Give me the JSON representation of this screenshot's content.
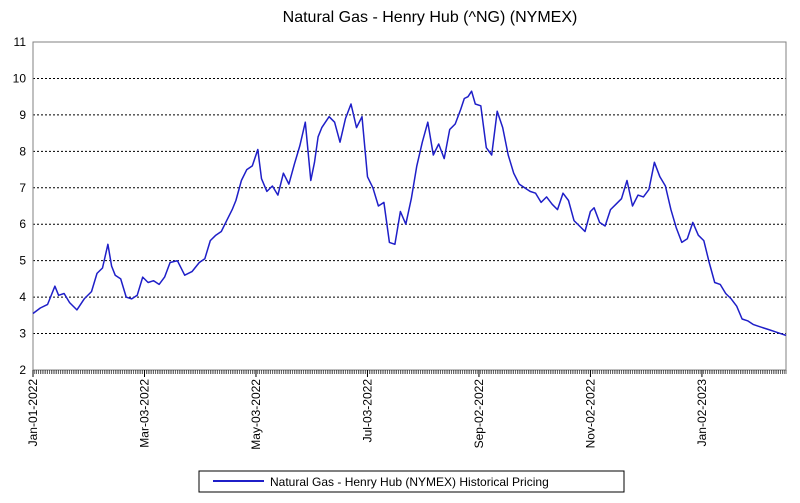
{
  "chart_data": {
    "type": "line",
    "title": "Natural Gas - Henry Hub (^NG) (NYMEX)",
    "xlabel": "",
    "ylabel": "",
    "ylim": [
      2,
      11
    ],
    "yticks": [
      2,
      3,
      4,
      5,
      6,
      7,
      8,
      9,
      10,
      11
    ],
    "xlim": [
      "2022-01-01",
      "2023-02-17"
    ],
    "xticks": [
      {
        "date": "2022-01-01",
        "label": "Jan-01-2022"
      },
      {
        "date": "2022-03-03",
        "label": "Mar-03-2022"
      },
      {
        "date": "2022-05-03",
        "label": "May-03-2022"
      },
      {
        "date": "2022-07-03",
        "label": "Jul-03-2022"
      },
      {
        "date": "2022-09-02",
        "label": "Sep-02-2022"
      },
      {
        "date": "2022-11-02",
        "label": "Nov-02-2022"
      },
      {
        "date": "2023-01-02",
        "label": "Jan-02-2023"
      }
    ],
    "grid": true,
    "legend_position": "bottom",
    "colors": {
      "series": "#1f1fc8",
      "grid": "#000000",
      "frame": "#808080"
    },
    "series": [
      {
        "name": "Natural Gas - Henry Hub (NYMEX) Historical Pricing",
        "x": [
          "2022-01-01",
          "2022-01-05",
          "2022-01-09",
          "2022-01-13",
          "2022-01-15",
          "2022-01-18",
          "2022-01-21",
          "2022-01-25",
          "2022-01-29",
          "2022-02-02",
          "2022-02-05",
          "2022-02-08",
          "2022-02-11",
          "2022-02-13",
          "2022-02-15",
          "2022-02-18",
          "2022-02-21",
          "2022-02-24",
          "2022-02-27",
          "2022-03-02",
          "2022-03-05",
          "2022-03-08",
          "2022-03-11",
          "2022-03-14",
          "2022-03-17",
          "2022-03-21",
          "2022-03-25",
          "2022-03-29",
          "2022-04-02",
          "2022-04-05",
          "2022-04-08",
          "2022-04-11",
          "2022-04-14",
          "2022-04-17",
          "2022-04-20",
          "2022-04-22",
          "2022-04-25",
          "2022-04-28",
          "2022-05-01",
          "2022-05-04",
          "2022-05-06",
          "2022-05-09",
          "2022-05-12",
          "2022-05-15",
          "2022-05-18",
          "2022-05-21",
          "2022-05-24",
          "2022-05-27",
          "2022-05-30",
          "2022-06-02",
          "2022-06-04",
          "2022-06-06",
          "2022-06-08",
          "2022-06-10",
          "2022-06-12",
          "2022-06-15",
          "2022-06-18",
          "2022-06-21",
          "2022-06-24",
          "2022-06-27",
          "2022-06-30",
          "2022-07-03",
          "2022-07-06",
          "2022-07-09",
          "2022-07-12",
          "2022-07-15",
          "2022-07-18",
          "2022-07-21",
          "2022-07-24",
          "2022-07-27",
          "2022-07-30",
          "2022-08-02",
          "2022-08-05",
          "2022-08-08",
          "2022-08-11",
          "2022-08-14",
          "2022-08-17",
          "2022-08-20",
          "2022-08-23",
          "2022-08-25",
          "2022-08-27",
          "2022-08-29",
          "2022-08-31",
          "2022-09-03",
          "2022-09-06",
          "2022-09-09",
          "2022-09-12",
          "2022-09-15",
          "2022-09-18",
          "2022-09-21",
          "2022-09-24",
          "2022-09-27",
          "2022-09-30",
          "2022-10-03",
          "2022-10-06",
          "2022-10-09",
          "2022-10-12",
          "2022-10-15",
          "2022-10-18",
          "2022-10-21",
          "2022-10-24",
          "2022-10-27",
          "2022-10-30",
          "2022-11-02",
          "2022-11-04",
          "2022-11-07",
          "2022-11-10",
          "2022-11-13",
          "2022-11-16",
          "2022-11-19",
          "2022-11-22",
          "2022-11-25",
          "2022-11-28",
          "2022-12-01",
          "2022-12-04",
          "2022-12-07",
          "2022-12-10",
          "2022-12-13",
          "2022-12-16",
          "2022-12-19",
          "2022-12-22",
          "2022-12-25",
          "2022-12-28",
          "2022-12-31",
          "2023-01-03",
          "2023-01-06",
          "2023-01-09",
          "2023-01-12",
          "2023-01-15",
          "2023-01-18",
          "2023-01-21",
          "2023-01-24",
          "2023-01-27",
          "2023-01-30",
          "2023-02-02",
          "2023-02-05",
          "2023-02-08",
          "2023-02-11",
          "2023-02-14",
          "2023-02-17"
        ],
        "values": [
          3.55,
          3.7,
          3.8,
          4.3,
          4.05,
          4.1,
          3.85,
          3.65,
          3.95,
          4.15,
          4.65,
          4.8,
          5.45,
          4.85,
          4.6,
          4.5,
          4.0,
          3.95,
          4.05,
          4.55,
          4.4,
          4.45,
          4.35,
          4.55,
          4.95,
          5.0,
          4.6,
          4.7,
          4.95,
          5.05,
          5.55,
          5.7,
          5.8,
          6.1,
          6.4,
          6.65,
          7.2,
          7.5,
          7.6,
          8.05,
          7.25,
          6.9,
          7.05,
          6.8,
          7.4,
          7.1,
          7.65,
          8.15,
          8.8,
          7.2,
          7.7,
          8.4,
          8.65,
          8.8,
          8.95,
          8.8,
          8.25,
          8.9,
          9.3,
          8.65,
          8.95,
          7.3,
          7.0,
          6.5,
          6.6,
          5.5,
          5.45,
          6.35,
          6.0,
          6.7,
          7.6,
          8.25,
          8.8,
          7.9,
          8.2,
          7.8,
          8.6,
          8.75,
          9.15,
          9.45,
          9.5,
          9.65,
          9.3,
          9.25,
          8.1,
          7.9,
          9.1,
          8.65,
          7.9,
          7.4,
          7.1,
          7.0,
          6.9,
          6.85,
          6.6,
          6.75,
          6.55,
          6.4,
          6.85,
          6.65,
          6.1,
          5.95,
          5.8,
          6.35,
          6.45,
          6.05,
          5.95,
          6.4,
          6.55,
          6.7,
          7.2,
          6.5,
          6.8,
          6.75,
          6.95,
          7.7,
          7.3,
          7.05,
          6.4,
          5.9,
          5.5,
          5.6,
          6.05,
          5.7,
          5.55,
          4.95,
          4.4,
          4.35,
          4.1,
          3.95,
          3.75,
          3.4,
          3.35,
          3.25,
          3.2,
          3.15,
          3.1,
          3.05,
          3.0,
          2.95
        ]
      }
    ]
  }
}
